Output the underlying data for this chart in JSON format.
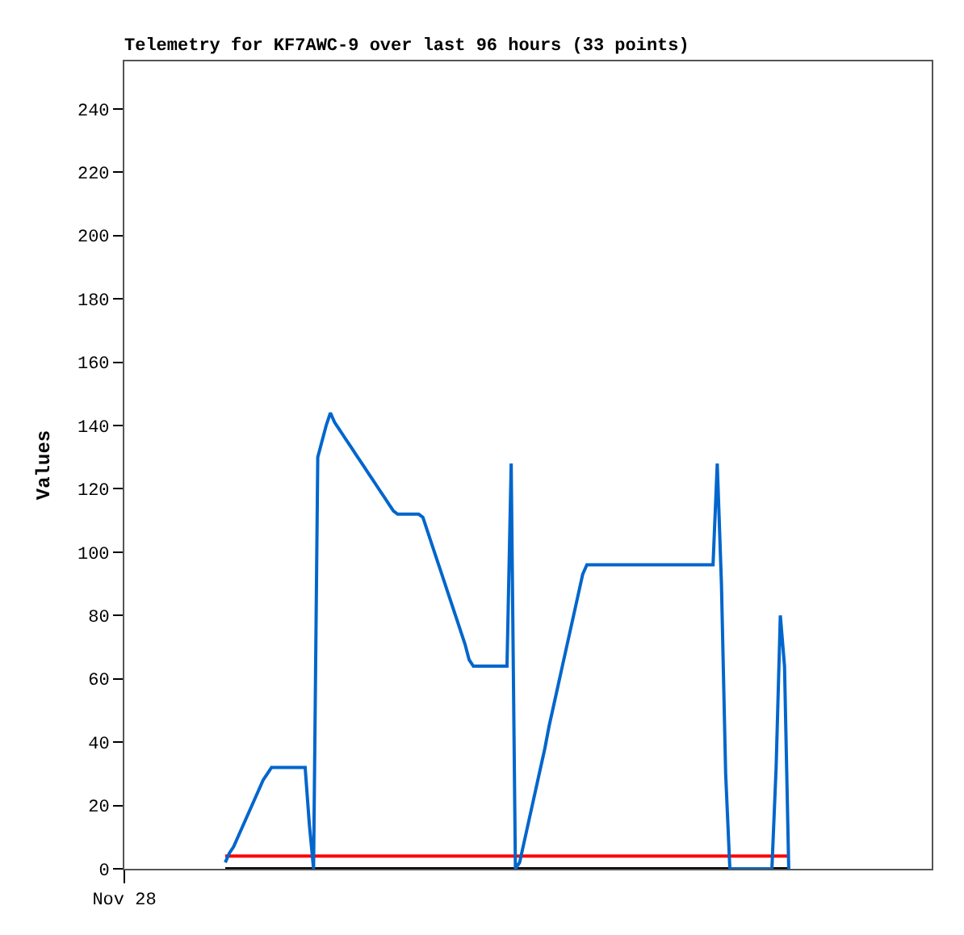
{
  "chart_data": {
    "type": "line",
    "title": "Telemetry for KF7AWC-9 over last 96 hours (33 points)",
    "ylabel": "Values",
    "categories": [
      "Nov 28",
      null,
      null,
      null,
      null,
      null,
      null,
      null,
      null,
      null,
      null,
      null,
      null,
      null,
      null,
      null,
      null,
      null,
      null,
      null,
      null,
      null,
      null,
      null,
      null,
      null,
      null,
      null,
      null,
      null,
      null,
      null,
      null,
      null,
      null,
      null,
      null,
      null,
      null,
      null,
      null,
      null,
      null,
      null,
      null,
      null,
      null,
      null,
      null,
      null,
      null,
      null,
      null,
      null,
      null,
      null,
      null,
      null,
      null,
      null,
      null,
      null,
      null,
      null,
      null,
      null,
      null,
      null,
      null,
      null,
      null,
      null,
      null,
      null,
      null,
      null,
      null,
      null,
      null,
      null,
      null,
      null,
      null,
      null,
      null,
      null,
      null,
      null,
      null,
      null,
      null,
      null,
      null,
      null,
      null,
      null,
      null,
      null,
      null,
      null,
      null,
      null,
      null,
      null,
      null,
      null,
      null,
      null,
      null,
      null,
      null,
      null,
      null,
      null,
      null,
      null,
      null,
      null,
      null,
      null,
      null,
      null,
      null,
      null,
      null,
      null,
      null,
      null,
      null,
      null,
      null,
      null,
      null,
      null,
      null,
      null,
      null,
      null,
      null,
      null,
      null,
      null,
      null,
      null,
      null,
      null,
      null,
      null,
      null,
      null,
      null,
      null,
      null,
      null,
      null,
      null,
      null,
      null,
      null,
      null,
      null,
      null,
      null,
      null,
      null,
      null,
      null,
      null,
      null,
      null,
      null,
      null,
      null,
      null,
      null,
      null,
      null,
      null,
      null,
      null,
      null,
      null,
      null,
      null,
      null,
      null,
      null,
      null,
      null,
      null,
      null,
      null,
      null
    ],
    "ylim": [
      0,
      255
    ],
    "yticks": [
      0,
      20,
      40,
      60,
      80,
      100,
      120,
      140,
      160,
      180,
      200,
      220,
      240
    ],
    "marker": "none",
    "line_style": "solid",
    "series": [
      {
        "color": "#000000",
        "values": [
          null,
          null,
          null,
          null,
          null,
          null,
          null,
          null,
          null,
          null,
          null,
          null,
          null,
          null,
          null,
          null,
          null,
          null,
          null,
          null,
          null,
          null,
          null,
          null,
          0,
          0,
          0,
          0,
          0,
          0,
          0,
          0,
          0,
          0,
          0,
          0,
          0,
          0,
          0,
          0,
          0,
          0,
          0,
          0,
          0,
          0,
          0,
          0,
          0,
          0,
          0,
          0,
          0,
          0,
          0,
          0,
          0,
          0,
          0,
          0,
          0,
          0,
          0,
          0,
          0,
          0,
          0,
          0,
          0,
          0,
          0,
          0,
          0,
          0,
          0,
          0,
          0,
          0,
          0,
          0,
          0,
          0,
          0,
          0,
          0,
          0,
          0,
          0,
          0,
          0,
          0,
          0,
          0,
          0,
          0,
          0,
          0,
          0,
          0,
          0,
          0,
          0,
          0,
          0,
          0,
          0,
          0,
          0,
          0,
          0,
          0,
          0,
          0,
          0,
          0,
          0,
          0,
          0,
          0,
          0,
          0,
          0,
          0,
          0,
          0,
          0,
          0,
          0,
          0,
          0,
          0,
          0,
          0,
          0,
          0,
          0,
          0,
          0,
          0,
          0,
          0,
          0,
          0,
          0,
          0,
          0,
          0,
          0,
          0,
          0,
          0,
          0,
          0,
          0,
          0,
          0,
          0,
          0,
          0,
          null,
          null,
          null,
          null,
          null,
          null,
          null,
          null,
          null,
          null,
          null,
          null,
          null,
          null,
          null,
          null,
          null,
          null,
          null,
          null,
          null,
          null,
          null,
          null,
          null,
          null,
          null,
          null,
          null,
          null,
          null,
          null,
          null,
          null
        ]
      },
      {
        "color": "#ff0000",
        "values": [
          null,
          null,
          null,
          null,
          null,
          null,
          null,
          null,
          null,
          null,
          null,
          null,
          null,
          null,
          null,
          null,
          null,
          null,
          null,
          null,
          null,
          null,
          null,
          null,
          4,
          4,
          4,
          4,
          4,
          4,
          4,
          4,
          4,
          4,
          4,
          4,
          4,
          4,
          4,
          4,
          4,
          4,
          4,
          4,
          4,
          4,
          4,
          4,
          4,
          4,
          4,
          4,
          4,
          4,
          4,
          4,
          4,
          4,
          4,
          4,
          4,
          4,
          4,
          4,
          4,
          4,
          4,
          4,
          4,
          4,
          4,
          4,
          4,
          4,
          4,
          4,
          4,
          4,
          4,
          4,
          4,
          4,
          4,
          4,
          4,
          4,
          4,
          4,
          4,
          4,
          4,
          4,
          4,
          4,
          4,
          4,
          4,
          4,
          4,
          4,
          4,
          4,
          4,
          4,
          4,
          4,
          4,
          4,
          4,
          4,
          4,
          4,
          4,
          4,
          4,
          4,
          4,
          4,
          4,
          4,
          4,
          4,
          4,
          4,
          4,
          4,
          4,
          4,
          4,
          4,
          4,
          4,
          4,
          4,
          4,
          4,
          4,
          4,
          4,
          4,
          4,
          4,
          4,
          4,
          4,
          4,
          4,
          4,
          4,
          4,
          4,
          4,
          4,
          4,
          4,
          4,
          4,
          4,
          4,
          null,
          null,
          null,
          null,
          null,
          null,
          null,
          null,
          null,
          null,
          null,
          null,
          null,
          null,
          null,
          null,
          null,
          null,
          null,
          null,
          null,
          null,
          null,
          null,
          null,
          null,
          null,
          null,
          null,
          null,
          null,
          null,
          null,
          null
        ]
      },
      {
        "color": "#0066cc",
        "values": [
          null,
          null,
          null,
          null,
          null,
          null,
          null,
          null,
          null,
          null,
          null,
          null,
          null,
          null,
          null,
          null,
          null,
          null,
          null,
          null,
          null,
          null,
          null,
          null,
          2,
          5,
          7,
          10,
          13,
          16,
          19,
          22,
          25,
          28,
          30,
          32,
          32,
          32,
          32,
          32,
          32,
          32,
          32,
          32,
          14,
          0,
          130,
          135,
          140,
          144,
          141,
          139,
          137,
          135,
          133,
          131,
          129,
          127,
          125,
          123,
          121,
          119,
          117,
          115,
          113,
          112,
          112,
          112,
          112,
          112,
          112,
          111,
          107,
          103,
          99,
          95,
          91,
          87,
          83,
          79,
          75,
          71,
          66,
          64,
          64,
          64,
          64,
          64,
          64,
          64,
          64,
          64,
          128,
          0,
          2,
          8,
          14,
          20,
          26,
          32,
          38,
          45,
          51,
          57,
          63,
          69,
          75,
          81,
          87,
          93,
          96,
          96,
          96,
          96,
          96,
          96,
          96,
          96,
          96,
          96,
          96,
          96,
          96,
          96,
          96,
          96,
          96,
          96,
          96,
          96,
          96,
          96,
          96,
          96,
          96,
          96,
          96,
          96,
          96,
          96,
          96,
          128,
          90,
          30,
          0,
          0,
          0,
          0,
          0,
          0,
          0,
          0,
          0,
          0,
          0,
          32,
          80,
          64,
          0,
          null,
          null,
          null,
          null,
          null,
          null,
          null,
          null,
          null,
          null,
          null,
          null,
          null,
          null,
          null,
          null,
          null,
          null,
          null,
          null,
          null,
          null,
          null,
          null,
          null,
          null,
          null,
          null,
          null,
          null,
          null,
          null,
          null,
          null
        ]
      }
    ]
  }
}
